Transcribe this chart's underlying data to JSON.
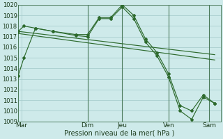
{
  "xlabel": "Pression niveau de la mer( hPa )",
  "background_color": "#ceeaea",
  "grid_color": "#a8cece",
  "line_color": "#2d6a2d",
  "vline_color": "#4a7a5a",
  "ylim": [
    1009,
    1020
  ],
  "xlim": [
    0,
    17.5
  ],
  "yticks": [
    1009,
    1010,
    1011,
    1012,
    1013,
    1014,
    1015,
    1016,
    1017,
    1018,
    1019,
    1020
  ],
  "x_day_labels": [
    "Mar",
    "Dim",
    "Jeu",
    "Ven",
    "Sam"
  ],
  "x_day_positions": [
    0.3,
    6.0,
    9.0,
    13.0,
    16.5
  ],
  "x_vline_positions": [
    6.0,
    9.0,
    13.0,
    16.5
  ],
  "series": [
    {
      "x": [
        0,
        0.5,
        1.5,
        3,
        5,
        6,
        7,
        8,
        9,
        10,
        11,
        12,
        13,
        14,
        15,
        16,
        17
      ],
      "y": [
        1013.3,
        1015.0,
        1017.8,
        1017.5,
        1017.1,
        1017.0,
        1018.7,
        1018.7,
        1019.8,
        1018.7,
        1016.5,
        1015.2,
        1013.2,
        1010.0,
        1009.2,
        1011.3,
        1010.7
      ]
    },
    {
      "x": [
        0,
        0.5,
        1.5,
        3,
        5,
        6,
        7,
        8,
        9,
        10,
        11,
        12,
        13,
        14,
        15,
        16,
        17
      ],
      "y": [
        1017.5,
        1018.0,
        1017.8,
        1017.5,
        1017.2,
        1017.2,
        1018.8,
        1018.8,
        1020.0,
        1019.0,
        1016.8,
        1015.5,
        1013.5,
        1010.5,
        1010.0,
        1011.5,
        1010.7
      ]
    },
    {
      "x": [
        0,
        17
      ],
      "y": [
        1017.5,
        1015.3
      ]
    },
    {
      "x": [
        0,
        17
      ],
      "y": [
        1017.3,
        1014.8
      ]
    }
  ]
}
